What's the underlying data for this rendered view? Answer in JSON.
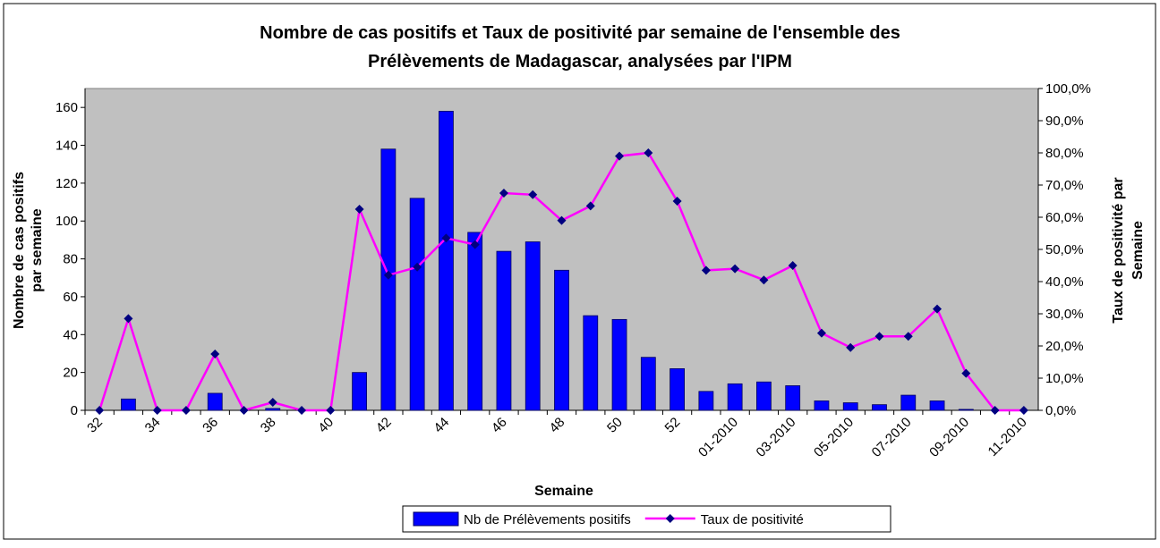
{
  "chart_data": {
    "type": "bar-line",
    "title": [
      "Nombre de cas positifs et Taux de positivité par semaine de l'ensemble des",
      "Prélèvements de Madagascar, analysées par l'IPM"
    ],
    "x_label": "Semaine",
    "y_label": [
      "Nombre de cas positifs",
      "par semaine"
    ],
    "y2_label": [
      "Taux de positivité par",
      "Semaine"
    ],
    "categories": [
      "32",
      null,
      "34",
      null,
      "36",
      null,
      "38",
      null,
      "40",
      null,
      "42",
      null,
      "44",
      null,
      "46",
      null,
      "48",
      null,
      "50",
      null,
      "52",
      null,
      "01-2010",
      null,
      "03-2010",
      null,
      "05-2010",
      null,
      "07-2010",
      null,
      "09-2010",
      null,
      "11-2010"
    ],
    "series": [
      {
        "name": "Nb de Prélèvements positifs",
        "type": "bar",
        "color": "#0000ff",
        "values": [
          0,
          6,
          0,
          0,
          9,
          0,
          1,
          0,
          0,
          20,
          138,
          112,
          158,
          94,
          84,
          89,
          74,
          50,
          48,
          28,
          22,
          10,
          14,
          15,
          13,
          5,
          4,
          3,
          8,
          5,
          0.5,
          0,
          0
        ]
      },
      {
        "name": "Taux de positivité",
        "type": "line",
        "axis": "y2",
        "color": "#ff00ff",
        "marker_color": "#000080",
        "values": [
          0,
          28.5,
          0,
          0,
          17.5,
          0,
          2.5,
          0,
          0,
          62.5,
          42,
          44.5,
          53.5,
          51.5,
          67.5,
          67,
          59,
          63.5,
          79,
          80,
          65,
          43.5,
          44,
          40.5,
          45,
          24,
          19.5,
          23,
          23,
          31.5,
          11.5,
          0,
          0
        ]
      }
    ],
    "ylim": [
      0,
      170
    ],
    "yticks": [
      0,
      20,
      40,
      60,
      80,
      100,
      120,
      140,
      160
    ],
    "y2lim": [
      0,
      100
    ],
    "y2ticks": [
      {
        "value": 0,
        "label": "0,0%"
      },
      {
        "value": 10,
        "label": "10,0%"
      },
      {
        "value": 20,
        "label": "20,0%"
      },
      {
        "value": 30,
        "label": "30,0%"
      },
      {
        "value": 40,
        "label": "40,0%"
      },
      {
        "value": 50,
        "label": "50,0%"
      },
      {
        "value": 60,
        "label": "60,0%"
      },
      {
        "value": 70,
        "label": "70,0%"
      },
      {
        "value": 80,
        "label": "80,0%"
      },
      {
        "value": 90,
        "label": "90,0%"
      },
      {
        "value": 100,
        "label": "100,0%"
      }
    ],
    "plot_background": "#c0c0c0",
    "grid": false,
    "legend": "bottom"
  }
}
